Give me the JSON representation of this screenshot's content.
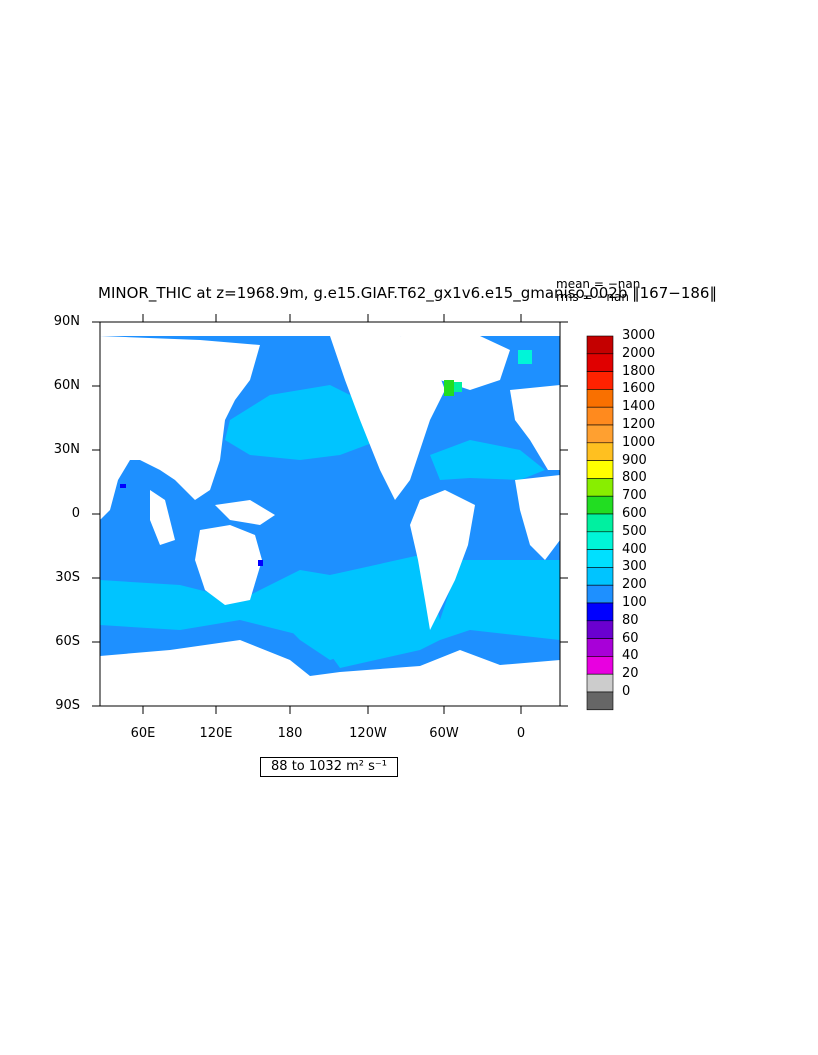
{
  "title": "MINOR_THIC at z=1968.9m, g.e15.GIAF.T62_gx1v6.e15_gmaniso.002b ‖167−186‖",
  "stats": {
    "mean": "mean = −nan",
    "rms": "rms = −nan"
  },
  "range_label": "88 to 1032 m² s⁻¹",
  "lat_labels": [
    "90N",
    "60N",
    "30N",
    "0",
    "30S",
    "60S",
    "90S"
  ],
  "lon_labels": [
    "60E",
    "120E",
    "180",
    "120W",
    "60W",
    "0"
  ],
  "colorbar": {
    "labels": [
      "3000",
      "2000",
      "1800",
      "1600",
      "1400",
      "1200",
      "1000",
      "900",
      "800",
      "700",
      "600",
      "500",
      "400",
      "300",
      "200",
      "100",
      "80",
      "60",
      "40",
      "20",
      "0"
    ],
    "colors": [
      "#c40000",
      "#e00000",
      "#ff2200",
      "#f97000",
      "#ff8a1e",
      "#ffa030",
      "#ffc020",
      "#ffff00",
      "#88ee00",
      "#22dd22",
      "#00f0a0",
      "#00f5d8",
      "#00e0ff",
      "#00c4ff",
      "#1e90ff",
      "#0000ff",
      "#6a00d0",
      "#a800d8",
      "#e800e0",
      "#cccccc",
      "#666666"
    ]
  },
  "legend_colors": {
    "land": "#ffffff",
    "deep_ocean": "#1e90ff",
    "shallow_ocean": "#00c4ff",
    "dark_blue": "#0000ff",
    "teal": "#00e0ff"
  }
}
